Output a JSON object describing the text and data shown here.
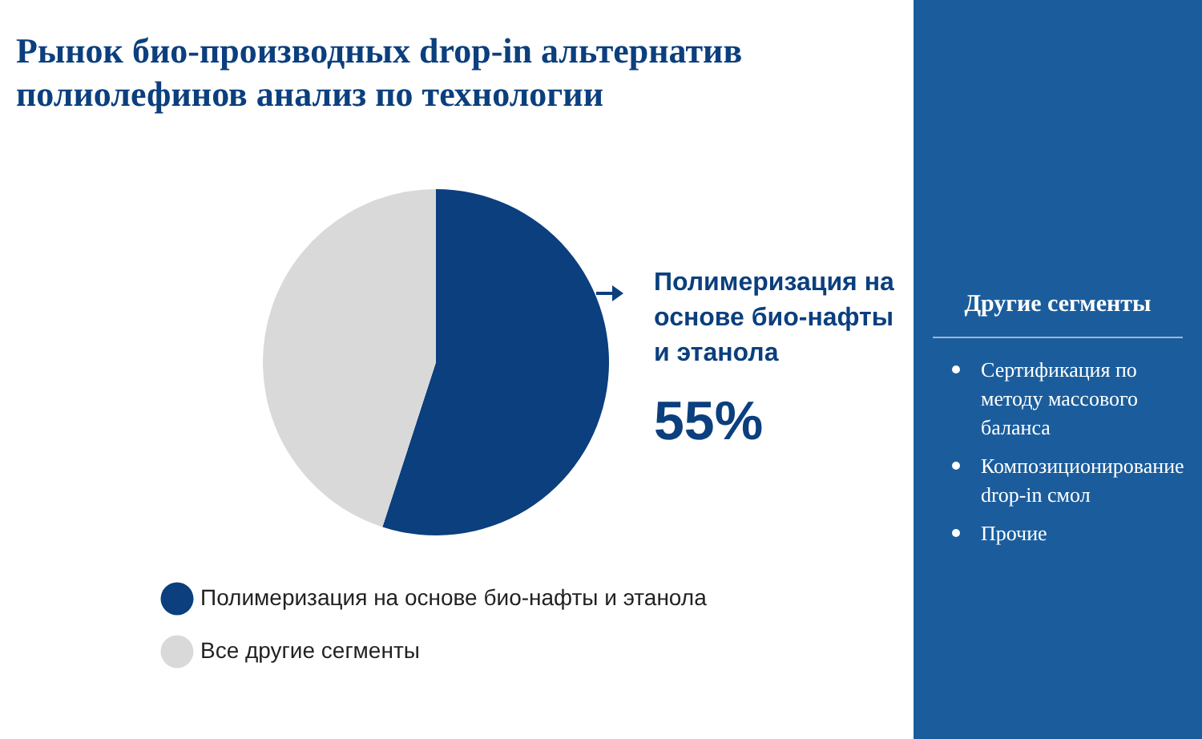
{
  "chart_data": {
    "type": "pie",
    "title": "Рынок био-производных drop-in альтернатив полиолефинов анализ по технологии",
    "categories": [
      "Полимеризация на основе био-нафты и этанола",
      "Все другие сегменты"
    ],
    "values": [
      55,
      45
    ],
    "colors": [
      "#0b3f7e",
      "#d9d9d9"
    ],
    "value_labels": [
      "55%",
      null
    ],
    "legend": "bottom",
    "annotations": [
      "Другие сегменты",
      "Сертификация по методу массового баланса",
      "Композиционирование drop-in смол",
      "Прочие"
    ]
  }
}
